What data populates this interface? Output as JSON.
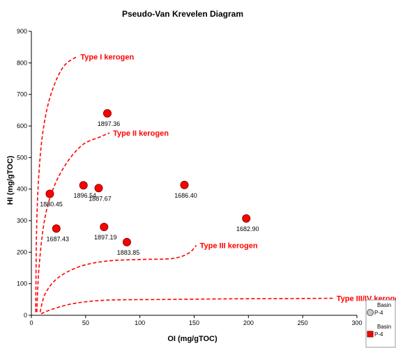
{
  "chart_data": {
    "type": "scatter",
    "title": "Pseudo-Van Krevelen Diagram",
    "xlabel": "OI (mg/gTOC)",
    "ylabel": "HI (mg/gTOC)",
    "xlim": [
      0,
      300
    ],
    "ylim": [
      0,
      900
    ],
    "x_ticks": [
      "0",
      "50",
      "100",
      "150",
      "200",
      "250",
      "300"
    ],
    "y_ticks": [
      "0",
      "100",
      "200",
      "300",
      "400",
      "500",
      "600",
      "700",
      "800",
      "900"
    ],
    "grid": false,
    "colors": {
      "points": "#ff0000",
      "curves": "#ff0000"
    },
    "series": [
      {
        "name": "P-4",
        "points": [
          {
            "x": 70,
            "y": 640,
            "label": "1897.36"
          },
          {
            "x": 48,
            "y": 412,
            "label": "1896.54"
          },
          {
            "x": 62,
            "y": 403,
            "label": "1887.67"
          },
          {
            "x": 17,
            "y": 385,
            "label": "1880.45"
          },
          {
            "x": 141,
            "y": 413,
            "label": "1686.40"
          },
          {
            "x": 198,
            "y": 307,
            "label": "1682.90"
          },
          {
            "x": 23,
            "y": 275,
            "label": "1687.43"
          },
          {
            "x": 67,
            "y": 280,
            "label": "1897.19"
          },
          {
            "x": 88,
            "y": 232,
            "label": "1883.85"
          }
        ]
      }
    ],
    "reference_curves": [
      {
        "name": "Type I kerogen",
        "points": [
          [
            4,
            10
          ],
          [
            5,
            300
          ],
          [
            8,
            500
          ],
          [
            13,
            630
          ],
          [
            20,
            720
          ],
          [
            30,
            790
          ],
          [
            42,
            820
          ]
        ]
      },
      {
        "name": "Type II kerogen",
        "points": [
          [
            5,
            10
          ],
          [
            7,
            150
          ],
          [
            12,
            300
          ],
          [
            20,
            400
          ],
          [
            32,
            480
          ],
          [
            47,
            540
          ],
          [
            63,
            565
          ],
          [
            72,
            578
          ]
        ]
      },
      {
        "name": "Type III kerogen",
        "points": [
          [
            8,
            10
          ],
          [
            13,
            70
          ],
          [
            25,
            120
          ],
          [
            45,
            155
          ],
          [
            70,
            172
          ],
          [
            100,
            177
          ],
          [
            130,
            180
          ],
          [
            145,
            197
          ],
          [
            152,
            222
          ]
        ]
      },
      {
        "name": "Type III/IV kerogen",
        "points": [
          [
            9,
            5
          ],
          [
            20,
            20
          ],
          [
            40,
            38
          ],
          [
            70,
            48
          ],
          [
            120,
            50
          ],
          [
            180,
            52
          ],
          [
            240,
            53
          ],
          [
            278,
            54
          ]
        ]
      }
    ],
    "legend": {
      "position": "bottom-right",
      "entries": [
        {
          "title": "Basin",
          "label": "P-4",
          "marker": "circle",
          "color": "#c8c8c8"
        },
        {
          "title": "Basin",
          "label": "P-4",
          "marker": "square",
          "color": "#ff0000"
        }
      ]
    }
  }
}
